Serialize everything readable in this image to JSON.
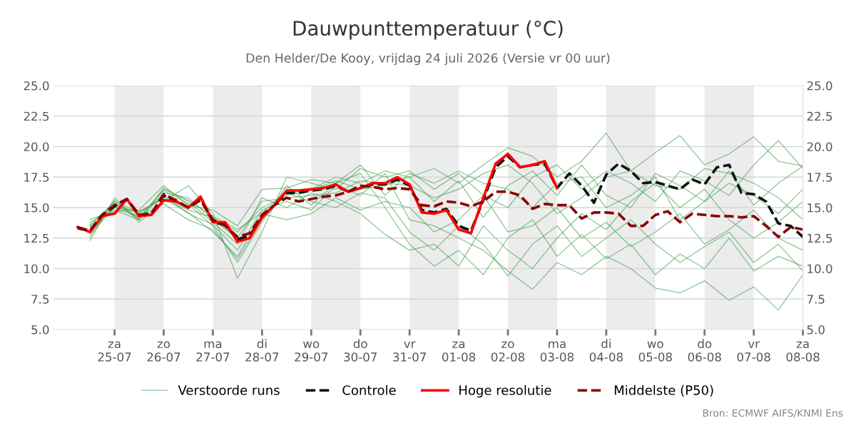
{
  "chart_data": {
    "type": "line",
    "title": "Dauwpunttemperatuur (°C)",
    "subtitle": "Den Helder/De Kooy, vrijdag 24 juli 2026 (Versie vr 00 uur)",
    "x": [
      "2026-07-24T06:00",
      "2026-07-24T12:00",
      "2026-07-24T18:00",
      "2026-07-25T00:00",
      "2026-07-25T06:00",
      "2026-07-25T12:00",
      "2026-07-25T18:00",
      "2026-07-26T00:00",
      "2026-07-26T06:00",
      "2026-07-26T12:00",
      "2026-07-26T18:00",
      "2026-07-27T00:00",
      "2026-07-27T06:00",
      "2026-07-27T12:00",
      "2026-07-27T18:00",
      "2026-07-28T00:00",
      "2026-07-28T06:00",
      "2026-07-28T12:00",
      "2026-07-28T18:00",
      "2026-07-29T00:00",
      "2026-07-29T06:00",
      "2026-07-29T12:00",
      "2026-07-29T18:00",
      "2026-07-30T00:00",
      "2026-07-30T06:00",
      "2026-07-30T12:00",
      "2026-07-30T18:00",
      "2026-07-31T00:00",
      "2026-07-31T06:00",
      "2026-07-31T12:00",
      "2026-07-31T18:00",
      "2026-08-01T00:00",
      "2026-08-01T06:00",
      "2026-08-01T12:00",
      "2026-08-01T18:00",
      "2026-08-02T00:00",
      "2026-08-02T06:00",
      "2026-08-02T12:00",
      "2026-08-02T18:00",
      "2026-08-03T00:00",
      "2026-08-03T06:00",
      "2026-08-03T12:00",
      "2026-08-03T18:00",
      "2026-08-04T00:00",
      "2026-08-04T06:00",
      "2026-08-04T12:00",
      "2026-08-04T18:00",
      "2026-08-05T00:00",
      "2026-08-05T06:00",
      "2026-08-05T12:00",
      "2026-08-05T18:00",
      "2026-08-06T00:00",
      "2026-08-06T06:00",
      "2026-08-06T12:00",
      "2026-08-06T18:00",
      "2026-08-07T00:00",
      "2026-08-07T06:00",
      "2026-08-07T12:00",
      "2026-08-07T18:00",
      "2026-08-08T00:00"
    ],
    "series": [
      {
        "name": "Verstoorde runs",
        "color": "#3a9f4a",
        "x": [
          "2026-07-24T12:00",
          "2026-07-25T00:00",
          "2026-07-25T12:00",
          "2026-07-26T00:00",
          "2026-07-26T12:00",
          "2026-07-27T00:00",
          "2026-07-27T12:00",
          "2026-07-28T00:00",
          "2026-07-28T12:00",
          "2026-07-29T00:00",
          "2026-07-29T12:00",
          "2026-07-30T00:00",
          "2026-07-30T12:00",
          "2026-07-31T00:00",
          "2026-07-31T12:00",
          "2026-08-01T00:00",
          "2026-08-01T12:00",
          "2026-08-02T00:00",
          "2026-08-02T12:00",
          "2026-08-03T00:00",
          "2026-08-03T12:00",
          "2026-08-04T00:00",
          "2026-08-04T12:00",
          "2026-08-05T00:00",
          "2026-08-05T12:00",
          "2026-08-06T00:00",
          "2026-08-06T12:00",
          "2026-08-07T00:00",
          "2026-08-07T12:00",
          "2026-08-08T00:00"
        ],
        "values": [
          12.8,
          15.0,
          14.2,
          16.4,
          15.3,
          13.5,
          10.5,
          13.8,
          16.8,
          15.2,
          17.0,
          17.8,
          15.0,
          12.0,
          10.2,
          11.5,
          9.5,
          12.5,
          14.0,
          11.0,
          12.8,
          10.8,
          12.0,
          9.5,
          11.2,
          10.0,
          12.5,
          9.8,
          11.0,
          10.2
        ]
      },
      {
        "color": "#3a9f4a",
        "x": [
          "2026-07-24T12:00",
          "2026-07-25T00:00",
          "2026-07-25T12:00",
          "2026-07-26T00:00",
          "2026-07-26T12:00",
          "2026-07-27T00:00",
          "2026-07-27T12:00",
          "2026-07-28T00:00",
          "2026-07-28T12:00",
          "2026-07-29T00:00",
          "2026-07-29T12:00",
          "2026-07-30T00:00",
          "2026-07-30T12:00",
          "2026-07-31T00:00",
          "2026-07-31T12:00",
          "2026-08-01T00:00",
          "2026-08-01T12:00",
          "2026-08-02T00:00",
          "2026-08-02T12:00",
          "2026-08-03T00:00",
          "2026-08-03T12:00",
          "2026-08-04T00:00",
          "2026-08-04T12:00",
          "2026-08-05T00:00",
          "2026-08-05T12:00",
          "2026-08-06T00:00",
          "2026-08-06T12:00",
          "2026-08-07T00:00",
          "2026-08-07T12:00",
          "2026-08-08T00:00"
        ],
        "values": [
          13.5,
          15.5,
          14.6,
          15.8,
          14.8,
          14.2,
          13.0,
          15.0,
          16.0,
          16.5,
          17.5,
          17.0,
          18.0,
          17.5,
          18.2,
          17.0,
          18.5,
          19.9,
          19.2,
          17.5,
          18.8,
          21.1,
          18.0,
          19.5,
          20.9,
          18.5,
          19.4,
          20.8,
          18.8,
          18.4
        ]
      },
      {
        "color": "#3a9f4a",
        "x": [
          "2026-07-24T12:00",
          "2026-07-25T00:00",
          "2026-07-25T12:00",
          "2026-07-26T00:00",
          "2026-07-26T12:00",
          "2026-07-27T00:00",
          "2026-07-27T12:00",
          "2026-07-28T00:00",
          "2026-07-28T12:00",
          "2026-07-29T00:00",
          "2026-07-29T12:00",
          "2026-07-30T00:00",
          "2026-07-30T12:00",
          "2026-07-31T00:00",
          "2026-07-31T12:00",
          "2026-08-01T00:00",
          "2026-08-01T12:00",
          "2026-08-02T00:00",
          "2026-08-02T12:00",
          "2026-08-03T00:00",
          "2026-08-03T12:00",
          "2026-08-04T00:00",
          "2026-08-04T12:00",
          "2026-08-05T00:00",
          "2026-08-05T12:00",
          "2026-08-06T00:00",
          "2026-08-06T12:00",
          "2026-08-07T00:00",
          "2026-08-07T12:00",
          "2026-08-08T00:00"
        ],
        "values": [
          14.0,
          14.8,
          14.0,
          16.6,
          15.5,
          13.8,
          12.0,
          15.8,
          15.0,
          16.2,
          15.5,
          14.5,
          12.8,
          11.5,
          12.0,
          10.2,
          13.5,
          11.5,
          10.0,
          12.5,
          14.5,
          13.2,
          15.5,
          17.0,
          15.0,
          16.5,
          14.0,
          12.5,
          13.8,
          15.5
        ]
      },
      {
        "color": "#3a9f4a",
        "x": [
          "2026-07-24T12:00",
          "2026-07-25T00:00",
          "2026-07-25T12:00",
          "2026-07-26T00:00",
          "2026-07-26T12:00",
          "2026-07-27T00:00",
          "2026-07-27T12:00",
          "2026-07-28T00:00",
          "2026-07-28T12:00",
          "2026-07-29T00:00",
          "2026-07-29T12:00",
          "2026-07-30T00:00",
          "2026-07-30T12:00",
          "2026-07-31T00:00",
          "2026-07-31T12:00",
          "2026-08-01T00:00",
          "2026-08-01T12:00",
          "2026-08-02T00:00",
          "2026-08-02T12:00",
          "2026-08-03T00:00",
          "2026-08-03T12:00",
          "2026-08-04T00:00",
          "2026-08-04T12:00",
          "2026-08-05T00:00",
          "2026-08-05T12:00",
          "2026-08-06T00:00",
          "2026-08-06T12:00",
          "2026-08-07T00:00",
          "2026-08-07T12:00",
          "2026-08-08T00:00"
        ],
        "values": [
          12.3,
          15.8,
          13.8,
          15.5,
          16.8,
          14.5,
          9.2,
          13.0,
          17.5,
          17.0,
          16.5,
          18.2,
          17.5,
          18.0,
          16.5,
          17.8,
          16.0,
          15.0,
          17.5,
          18.5,
          16.5,
          18.0,
          17.0,
          15.5,
          18.0,
          17.2,
          16.0,
          18.5,
          20.5,
          18.2
        ]
      },
      {
        "color": "#3a9f4a",
        "x": [
          "2026-07-24T12:00",
          "2026-07-25T00:00",
          "2026-07-25T12:00",
          "2026-07-26T00:00",
          "2026-07-26T12:00",
          "2026-07-27T00:00",
          "2026-07-27T12:00",
          "2026-07-28T00:00",
          "2026-07-28T12:00",
          "2026-07-29T00:00",
          "2026-07-29T12:00",
          "2026-07-30T00:00",
          "2026-07-30T12:00",
          "2026-07-31T00:00",
          "2026-07-31T12:00",
          "2026-08-01T00:00",
          "2026-08-01T12:00",
          "2026-08-02T00:00",
          "2026-08-02T12:00",
          "2026-08-03T00:00",
          "2026-08-03T12:00",
          "2026-08-04T00:00",
          "2026-08-04T12:00",
          "2026-08-05T00:00",
          "2026-08-05T12:00",
          "2026-08-06T00:00",
          "2026-08-06T12:00",
          "2026-08-07T00:00",
          "2026-08-07T12:00",
          "2026-08-08T00:00"
        ],
        "values": [
          13.2,
          15.3,
          14.5,
          16.0,
          14.5,
          13.6,
          11.5,
          14.8,
          15.5,
          14.8,
          16.8,
          16.0,
          17.8,
          14.0,
          13.5,
          12.5,
          11.5,
          9.8,
          8.3,
          10.5,
          9.5,
          11.0,
          10.0,
          8.4,
          8.0,
          9.0,
          7.4,
          8.5,
          6.6,
          9.5
        ]
      },
      {
        "color": "#3a9f4a",
        "x": [
          "2026-07-24T12:00",
          "2026-07-25T00:00",
          "2026-07-25T12:00",
          "2026-07-26T00:00",
          "2026-07-26T12:00",
          "2026-07-27T00:00",
          "2026-07-27T12:00",
          "2026-07-28T00:00",
          "2026-07-28T12:00",
          "2026-07-29T00:00",
          "2026-07-29T12:00",
          "2026-07-30T00:00",
          "2026-07-30T12:00",
          "2026-07-31T00:00",
          "2026-07-31T12:00",
          "2026-08-01T00:00",
          "2026-08-01T12:00",
          "2026-08-02T00:00",
          "2026-08-02T12:00",
          "2026-08-03T00:00",
          "2026-08-03T12:00",
          "2026-08-04T00:00",
          "2026-08-04T12:00",
          "2026-08-05T00:00",
          "2026-08-05T12:00",
          "2026-08-06T00:00",
          "2026-08-06T12:00",
          "2026-08-07T00:00",
          "2026-08-07T12:00",
          "2026-08-08T00:00"
        ],
        "values": [
          13.8,
          14.7,
          14.8,
          16.8,
          15.2,
          14.8,
          13.5,
          16.5,
          16.6,
          17.3,
          17.0,
          18.5,
          16.0,
          17.8,
          17.0,
          18.0,
          17.0,
          16.5,
          15.0,
          17.0,
          17.5,
          15.0,
          16.0,
          17.5,
          14.0,
          15.5,
          17.0,
          16.0,
          14.5,
          16.5
        ]
      },
      {
        "color": "#3a9f4a",
        "x": [
          "2026-07-24T12:00",
          "2026-07-25T00:00",
          "2026-07-25T12:00",
          "2026-07-26T00:00",
          "2026-07-26T12:00",
          "2026-07-27T00:00",
          "2026-07-27T12:00",
          "2026-07-28T00:00",
          "2026-07-28T12:00",
          "2026-07-29T00:00",
          "2026-07-29T12:00",
          "2026-07-30T00:00",
          "2026-07-30T12:00",
          "2026-07-31T00:00",
          "2026-07-31T12:00",
          "2026-08-01T00:00",
          "2026-08-01T12:00",
          "2026-08-02T00:00",
          "2026-08-02T12:00",
          "2026-08-03T00:00",
          "2026-08-03T12:00",
          "2026-08-04T00:00",
          "2026-08-04T12:00",
          "2026-08-05T00:00",
          "2026-08-05T12:00",
          "2026-08-06T00:00",
          "2026-08-06T12:00",
          "2026-08-07T00:00",
          "2026-08-07T12:00",
          "2026-08-08T00:00"
        ],
        "values": [
          13.0,
          15.1,
          14.3,
          15.3,
          14.0,
          13.2,
          10.8,
          14.0,
          16.2,
          15.5,
          15.0,
          16.2,
          15.8,
          13.0,
          11.5,
          13.5,
          12.0,
          9.4,
          12.0,
          13.5,
          11.0,
          12.5,
          14.0,
          12.0,
          10.5,
          11.8,
          13.0,
          10.5,
          12.0,
          9.8
        ]
      },
      {
        "color": "#3a9f4a",
        "x": [
          "2026-07-24T12:00",
          "2026-07-25T00:00",
          "2026-07-25T12:00",
          "2026-07-26T00:00",
          "2026-07-26T12:00",
          "2026-07-27T00:00",
          "2026-07-27T12:00",
          "2026-07-28T00:00",
          "2026-07-28T12:00",
          "2026-07-29T00:00",
          "2026-07-29T12:00",
          "2026-07-30T00:00",
          "2026-07-30T12:00",
          "2026-07-31T00:00",
          "2026-07-31T12:00",
          "2026-08-01T00:00",
          "2026-08-01T12:00",
          "2026-08-02T00:00",
          "2026-08-02T12:00",
          "2026-08-03T00:00",
          "2026-08-03T12:00",
          "2026-08-04T00:00",
          "2026-08-04T12:00",
          "2026-08-05T00:00",
          "2026-08-05T12:00",
          "2026-08-06T00:00",
          "2026-08-06T12:00",
          "2026-08-07T00:00",
          "2026-08-07T12:00",
          "2026-08-08T00:00"
        ],
        "values": [
          12.6,
          15.6,
          14.0,
          16.2,
          15.8,
          14.0,
          12.5,
          15.5,
          15.8,
          16.0,
          16.2,
          17.2,
          17.0,
          16.8,
          15.8,
          16.5,
          17.8,
          18.5,
          17.0,
          14.5,
          15.8,
          17.5,
          18.0,
          16.8,
          16.5,
          18.2,
          17.8,
          17.0,
          15.8,
          14.0
        ]
      },
      {
        "color": "#3a9f4a",
        "x": [
          "2026-07-24T12:00",
          "2026-07-25T00:00",
          "2026-07-25T12:00",
          "2026-07-26T00:00",
          "2026-07-26T12:00",
          "2026-07-27T00:00",
          "2026-07-27T12:00",
          "2026-07-28T00:00",
          "2026-07-28T12:00",
          "2026-07-29T00:00",
          "2026-07-29T12:00",
          "2026-07-30T00:00",
          "2026-07-30T12:00",
          "2026-07-31T00:00",
          "2026-07-31T12:00",
          "2026-08-01T00:00",
          "2026-08-01T12:00",
          "2026-08-02T00:00",
          "2026-08-02T12:00",
          "2026-08-03T00:00",
          "2026-08-03T12:00",
          "2026-08-04T00:00",
          "2026-08-04T12:00",
          "2026-08-05T00:00",
          "2026-08-05T12:00",
          "2026-08-06T00:00",
          "2026-08-06T12:00",
          "2026-08-07T00:00",
          "2026-08-07T12:00",
          "2026-08-08T00:00"
        ],
        "values": [
          13.4,
          15.0,
          14.7,
          15.7,
          14.6,
          13.0,
          11.0,
          14.5,
          14.0,
          14.5,
          15.8,
          14.8,
          15.5,
          15.0,
          13.0,
          14.0,
          16.0,
          13.0,
          13.5,
          15.0,
          12.5,
          13.8,
          11.8,
          13.0,
          14.5,
          12.0,
          13.2,
          14.8,
          12.5,
          11.5
        ]
      },
      {
        "color": "#3a9f4a",
        "x": [
          "2026-07-24T12:00",
          "2026-07-25T00:00",
          "2026-07-25T12:00",
          "2026-07-26T00:00",
          "2026-07-26T12:00",
          "2026-07-27T00:00",
          "2026-07-27T12:00",
          "2026-07-28T00:00",
          "2026-07-28T12:00",
          "2026-07-29T00:00",
          "2026-07-29T12:00",
          "2026-07-30T00:00",
          "2026-07-30T12:00",
          "2026-07-31T00:00",
          "2026-07-31T12:00",
          "2026-08-01T00:00",
          "2026-08-01T12:00",
          "2026-08-02T00:00",
          "2026-08-02T12:00",
          "2026-08-03T00:00",
          "2026-08-03T12:00",
          "2026-08-04T00:00",
          "2026-08-04T12:00",
          "2026-08-05T00:00",
          "2026-08-05T12:00",
          "2026-08-06T00:00",
          "2026-08-06T12:00",
          "2026-08-07T00:00",
          "2026-08-07T12:00",
          "2026-08-08T00:00"
        ],
        "values": [
          13.6,
          15.4,
          14.1,
          16.5,
          15.6,
          14.3,
          13.2,
          14.6,
          16.3,
          16.4,
          17.2,
          16.5,
          16.8,
          17.5,
          15.5,
          17.2,
          14.2,
          16.8,
          18.0,
          16.0,
          18.5,
          16.0,
          15.0,
          17.8,
          16.8,
          15.5,
          18.0,
          15.2,
          17.0,
          18.4
        ]
      },
      {
        "name": "Controle",
        "color": "#111111",
        "line_style": "dashed",
        "values": [
          13.3,
          13.1,
          14.4,
          15.1,
          15.7,
          14.4,
          14.5,
          16.0,
          15.5,
          15.0,
          15.8,
          13.8,
          13.6,
          12.4,
          12.7,
          14.2,
          15.2,
          16.2,
          16.2,
          16.4,
          16.5,
          16.8,
          16.3,
          16.6,
          16.9,
          16.9,
          17.3,
          16.8,
          14.8,
          14.6,
          14.9,
          13.5,
          13.1,
          15.6,
          18.3,
          19.2,
          18.3,
          18.5,
          18.6,
          16.6,
          17.8,
          16.8,
          15.4,
          17.7,
          18.6,
          18.0,
          17.0,
          17.1,
          16.8,
          16.5,
          17.3,
          16.9,
          18.3,
          18.5,
          16.2,
          16.1,
          15.5,
          13.7,
          13.5,
          12.6
        ]
      },
      {
        "name": "Hoge resolutie",
        "color": "#ff0000",
        "line_style": "solid",
        "values": [
          13.4,
          13.0,
          14.3,
          14.5,
          15.7,
          14.3,
          14.4,
          15.6,
          15.5,
          15.0,
          15.9,
          13.8,
          13.8,
          12.2,
          12.5,
          14.2,
          15.2,
          16.4,
          16.4,
          16.5,
          16.6,
          16.9,
          16.3,
          16.6,
          17.0,
          17.0,
          17.5,
          16.9,
          14.6,
          14.5,
          14.8,
          13.2,
          12.9,
          15.8,
          18.6,
          19.4,
          18.3,
          18.5,
          18.8,
          16.6,
          null,
          null,
          null,
          null,
          null,
          null,
          null,
          null,
          null,
          null,
          null,
          null,
          null,
          null,
          null,
          null,
          null,
          null,
          null,
          null
        ]
      },
      {
        "name": "Middelste (P50)",
        "color": "#8b0000",
        "line_style": "dashed",
        "values": [
          13.4,
          13.1,
          14.4,
          15.2,
          15.7,
          14.4,
          14.5,
          16.1,
          15.6,
          15.0,
          15.6,
          14.0,
          13.5,
          12.6,
          12.9,
          14.4,
          15.2,
          15.8,
          15.5,
          15.7,
          15.9,
          16.0,
          16.3,
          16.8,
          16.7,
          16.5,
          16.6,
          16.5,
          15.2,
          15.1,
          15.5,
          15.4,
          15.1,
          15.5,
          16.3,
          16.3,
          16.0,
          14.9,
          15.3,
          15.2,
          15.2,
          14.1,
          14.6,
          14.6,
          14.5,
          13.5,
          13.5,
          14.4,
          14.7,
          13.8,
          14.5,
          14.4,
          14.3,
          14.3,
          14.2,
          14.3,
          13.5,
          12.6,
          13.4,
          13.2
        ]
      }
    ],
    "xlim": [
      "2026-07-23T18:00",
      "2026-08-08T00:00"
    ],
    "xticks": [
      {
        "value": "2026-07-25",
        "label": "za\n25-07"
      },
      {
        "value": "2026-07-26",
        "label": "zo\n26-07"
      },
      {
        "value": "2026-07-27",
        "label": "ma\n27-07"
      },
      {
        "value": "2026-07-28",
        "label": "di\n28-07"
      },
      {
        "value": "2026-07-29",
        "label": "wo\n29-07"
      },
      {
        "value": "2026-07-30",
        "label": "do\n30-07"
      },
      {
        "value": "2026-07-31",
        "label": "vr\n31-07"
      },
      {
        "value": "2026-08-01",
        "label": "za\n01-08"
      },
      {
        "value": "2026-08-02",
        "label": "zo\n02-08"
      },
      {
        "value": "2026-08-03",
        "label": "ma\n03-08"
      },
      {
        "value": "2026-08-04",
        "label": "di\n04-08"
      },
      {
        "value": "2026-08-05",
        "label": "wo\n05-08"
      },
      {
        "value": "2026-08-06",
        "label": "do\n06-08"
      },
      {
        "value": "2026-08-07",
        "label": "vr\n07-08"
      },
      {
        "value": "2026-08-08",
        "label": "za\n08-08"
      }
    ],
    "ylim": [
      5,
      25
    ],
    "yticks": [
      {
        "value": 5,
        "label": "5.0"
      },
      7.5,
      {
        "value": 10,
        "label": "10.0"
      },
      12.5,
      {
        "value": 15,
        "label": "15.0"
      },
      17.5,
      {
        "value": 20,
        "label": "20.0"
      },
      22.5,
      {
        "value": 25,
        "label": "25.0"
      }
    ],
    "y2lim": [
      5,
      25
    ],
    "y2ticks": [
      {
        "value": 5,
        "label": "5.0"
      },
      7.5,
      {
        "value": 10,
        "label": "10.0"
      },
      12.5,
      {
        "value": 15,
        "label": "15.0"
      },
      17.5,
      {
        "value": 20,
        "label": "20.0"
      },
      22.5,
      {
        "value": 25,
        "label": "25.0"
      }
    ],
    "bands": [
      {
        "axis": "x",
        "from": "2026-07-25",
        "to": "2026-07-26",
        "color": "#ececec"
      },
      {
        "axis": "x",
        "from": "2026-07-27",
        "to": "2026-07-28",
        "color": "#ececec"
      },
      {
        "axis": "x",
        "from": "2026-07-29",
        "to": "2026-07-30",
        "color": "#ececec"
      },
      {
        "axis": "x",
        "from": "2026-07-31",
        "to": "2026-08-01",
        "color": "#ececec"
      },
      {
        "axis": "x",
        "from": "2026-08-02",
        "to": "2026-08-03",
        "color": "#ececec"
      },
      {
        "axis": "x",
        "from": "2026-08-04",
        "to": "2026-08-05",
        "color": "#ececec"
      },
      {
        "axis": "x",
        "from": "2026-08-06",
        "to": "2026-08-07",
        "color": "#ececec"
      }
    ],
    "grid": "y",
    "legend": "bottom",
    "annotations": [
      "Bron: ECMWF AIFS/KNMI Ens"
    ]
  }
}
